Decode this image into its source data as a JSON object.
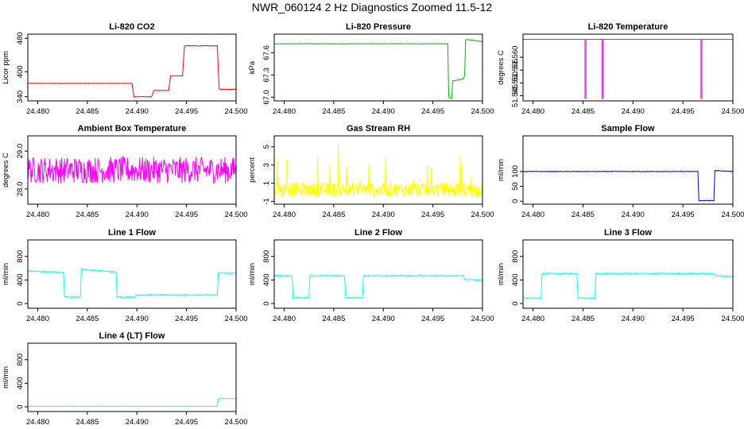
{
  "figure": {
    "title": "NWR_060124  2 Hz Diagnostics Zoomed 11.5-12"
  },
  "chart_data": [
    {
      "type": "line",
      "title": "Li-820 CO2",
      "xlabel": "",
      "ylabel": "Licor ppm",
      "color": "#ff0000",
      "xlim": [
        24.479,
        24.5
      ],
      "ylim": [
        330,
        490
      ],
      "xticks": [
        "24.480",
        "24.485",
        "24.490",
        "24.495",
        "24.500"
      ],
      "xtick_values": [
        24.48,
        24.485,
        24.49,
        24.495,
        24.5
      ],
      "yticks": [
        "340",
        "400",
        "480"
      ],
      "ytick_values": [
        340,
        400,
        480
      ],
      "series": [
        {
          "x": [
            24.479,
            24.4895,
            24.4897,
            24.4915,
            24.4917,
            24.4932,
            24.4934,
            24.4946,
            24.4948,
            24.4981,
            24.4983,
            24.5
          ],
          "y": [
            372,
            372,
            340,
            340,
            355,
            355,
            390,
            390,
            462,
            462,
            358,
            358
          ],
          "noise": 0.6
        }
      ]
    },
    {
      "type": "line",
      "title": "Li-820 Pressure",
      "xlabel": "",
      "ylabel": "kPa",
      "color": "#00bb00",
      "xlim": [
        24.479,
        24.5
      ],
      "ylim": [
        66.95,
        67.85
      ],
      "xticks": [
        "24.480",
        "24.485",
        "24.490",
        "24.495",
        "24.500"
      ],
      "xtick_values": [
        24.48,
        24.485,
        24.49,
        24.495,
        24.5
      ],
      "yticks": [
        "67.0",
        "67.3",
        "67.6"
      ],
      "ytick_values": [
        67.0,
        67.3,
        67.6
      ],
      "series": [
        {
          "x": [
            24.479,
            24.4965,
            24.4966,
            24.4969,
            24.497,
            24.4981,
            24.4982,
            24.4983,
            24.4984,
            24.5
          ],
          "y": [
            67.72,
            67.72,
            67.0,
            66.98,
            67.22,
            67.25,
            67.3,
            67.76,
            67.78,
            67.75
          ],
          "noise": 0.003
        }
      ]
    },
    {
      "type": "line",
      "title": "Li-820 Temperature",
      "xlabel": "",
      "ylabel": "degrees C",
      "color": "#ff00ff",
      "xlim": [
        24.479,
        24.5
      ],
      "ylim": [
        51.543,
        51.569
      ],
      "xticks": [
        "24.480",
        "24.485",
        "24.490",
        "24.495",
        "24.500"
      ],
      "xtick_values": [
        24.48,
        24.485,
        24.49,
        24.495,
        24.5
      ],
      "yticks": [
        "51.545",
        "51.550",
        "51.555",
        "51.560"
      ],
      "ytick_values": [
        51.545,
        51.55,
        51.555,
        51.56
      ],
      "series": [
        {
          "x": [
            24.479,
            24.4852,
            24.4852,
            24.4853,
            24.4853,
            24.4869,
            24.4869,
            24.487,
            24.487,
            24.4968,
            24.4968,
            24.4969,
            24.4969,
            24.5
          ],
          "y": [
            51.567,
            51.567,
            51.544,
            51.544,
            51.567,
            51.567,
            51.544,
            51.544,
            51.567,
            51.567,
            51.544,
            51.544,
            51.567,
            51.567
          ],
          "noise": 0
        }
      ]
    },
    {
      "type": "line",
      "title": "Ambient Box Temperature",
      "xlabel": "",
      "ylabel": "degrees C",
      "color": "#ff00ff",
      "xlim": [
        24.479,
        24.5
      ],
      "ylim": [
        27.6,
        29.4
      ],
      "xticks": [
        "24.480",
        "24.485",
        "24.490",
        "24.495",
        "24.500"
      ],
      "xtick_values": [
        24.48,
        24.485,
        24.49,
        24.495,
        24.5
      ],
      "yticks": [
        "28.0",
        "29.0"
      ],
      "ytick_values": [
        28.0,
        29.0
      ],
      "series": [
        {
          "x": [
            24.479,
            24.5
          ],
          "y": [
            28.5,
            28.5
          ],
          "noise": 0.35
        }
      ]
    },
    {
      "type": "line",
      "title": "Gas Stream RH",
      "xlabel": "",
      "ylabel": "percent",
      "color": "#ffff00",
      "xlim": [
        24.479,
        24.5
      ],
      "ylim": [
        -1.3,
        6.2
      ],
      "xticks": [
        "24.480",
        "24.485",
        "24.490",
        "24.495",
        "24.500"
      ],
      "xtick_values": [
        24.48,
        24.485,
        24.49,
        24.495,
        24.5
      ],
      "yticks": [
        "-1",
        "1",
        "3",
        "5"
      ],
      "ytick_values": [
        -1,
        1,
        3,
        5
      ],
      "series": [
        {
          "x": [
            24.479,
            24.5
          ],
          "y": [
            0.3,
            0.3
          ],
          "noise": 0.8,
          "spikes": 4.5
        }
      ]
    },
    {
      "type": "line",
      "title": "Sample Flow",
      "xlabel": "",
      "ylabel": "ml/min",
      "color": "#0000cc",
      "xlim": [
        24.479,
        24.5
      ],
      "ylim": [
        -10,
        220
      ],
      "xticks": [
        "24.480",
        "24.485",
        "24.490",
        "24.495",
        "24.500"
      ],
      "xtick_values": [
        24.48,
        24.485,
        24.49,
        24.495,
        24.5
      ],
      "yticks": [
        "0",
        "50",
        "100"
      ],
      "ytick_values": [
        0,
        50,
        100
      ],
      "series": [
        {
          "x": [
            24.479,
            24.4965,
            24.4966,
            24.4981,
            24.4982,
            24.5
          ],
          "y": [
            100,
            100,
            2,
            2,
            103,
            100
          ],
          "noise": 1
        }
      ]
    },
    {
      "type": "line",
      "title": "Line 1 Flow",
      "xlabel": "",
      "ylabel": "ml/min",
      "color": "#00ffff",
      "xlim": [
        24.479,
        24.5
      ],
      "ylim": [
        -80,
        1080
      ],
      "xticks": [
        "24.480",
        "24.485",
        "24.490",
        "24.495",
        "24.500"
      ],
      "xtick_values": [
        24.48,
        24.485,
        24.49,
        24.495,
        24.5
      ],
      "yticks": [
        "0",
        "400",
        "800"
      ],
      "ytick_values": [
        0,
        400,
        800
      ],
      "series": [
        {
          "x": [
            24.479,
            24.4826,
            24.4827,
            24.4843,
            24.4844,
            24.4879,
            24.488,
            24.4898,
            24.4899,
            24.4981,
            24.4982,
            24.5
          ],
          "y": [
            555,
            525,
            110,
            110,
            580,
            535,
            110,
            110,
            145,
            145,
            520,
            510
          ],
          "noise": 10
        }
      ]
    },
    {
      "type": "line",
      "title": "Line 2 Flow",
      "xlabel": "",
      "ylabel": "ml/min",
      "color": "#00ffff",
      "xlim": [
        24.479,
        24.5
      ],
      "ylim": [
        -80,
        1080
      ],
      "xticks": [
        "24.480",
        "24.485",
        "24.490",
        "24.495",
        "24.500"
      ],
      "xtick_values": [
        24.48,
        24.485,
        24.49,
        24.495,
        24.5
      ],
      "yticks": [
        "0",
        "400",
        "800"
      ],
      "ytick_values": [
        0,
        400,
        800
      ],
      "series": [
        {
          "x": [
            24.479,
            24.4808,
            24.4809,
            24.4825,
            24.4826,
            24.4861,
            24.4862,
            24.4879,
            24.488,
            24.4981,
            24.4982,
            24.5
          ],
          "y": [
            470,
            470,
            100,
            100,
            470,
            470,
            100,
            100,
            470,
            470,
            410,
            400
          ],
          "noise": 10
        }
      ]
    },
    {
      "type": "line",
      "title": "Line 3 Flow",
      "xlabel": "",
      "ylabel": "ml/min",
      "color": "#00ffff",
      "xlim": [
        24.479,
        24.5
      ],
      "ylim": [
        -80,
        1080
      ],
      "xticks": [
        "24.480",
        "24.485",
        "24.490",
        "24.495",
        "24.500"
      ],
      "xtick_values": [
        24.48,
        24.485,
        24.49,
        24.495,
        24.5
      ],
      "yticks": [
        "0",
        "400",
        "800"
      ],
      "ytick_values": [
        0,
        400,
        800
      ],
      "series": [
        {
          "x": [
            24.479,
            24.4808,
            24.4809,
            24.4844,
            24.4845,
            24.4862,
            24.4863,
            24.4981,
            24.4982,
            24.5
          ],
          "y": [
            90,
            90,
            510,
            510,
            90,
            90,
            510,
            510,
            470,
            460
          ],
          "noise": 10
        }
      ]
    },
    {
      "type": "line",
      "title": "Line 4 (LT) Flow",
      "xlabel": "",
      "ylabel": "ml/min",
      "color": "#00ffff",
      "xlim": [
        24.479,
        24.5
      ],
      "ylim": [
        -80,
        1080
      ],
      "xticks": [
        "24.480",
        "24.485",
        "24.490",
        "24.495",
        "24.500"
      ],
      "xtick_values": [
        24.48,
        24.485,
        24.49,
        24.495,
        24.5
      ],
      "yticks": [
        "0",
        "400",
        "800"
      ],
      "ytick_values": [
        0,
        400,
        800
      ],
      "series": [
        {
          "x": [
            24.479,
            24.4981,
            24.4982,
            24.4983,
            24.5
          ],
          "y": [
            10,
            10,
            130,
            140,
            140
          ],
          "noise": 2
        }
      ]
    }
  ]
}
